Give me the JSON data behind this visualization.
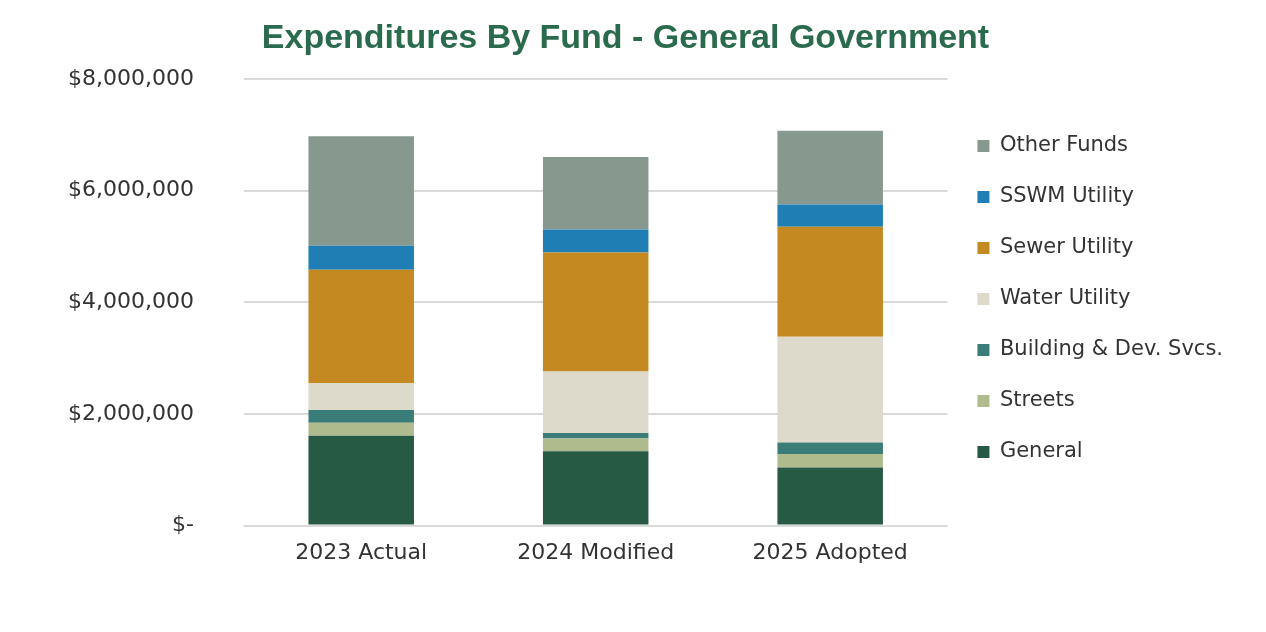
{
  "chart_data": {
    "type": "bar",
    "title": "Expenditures By Fund - General Government",
    "categories": [
      "2023 Actual",
      "2024 Modified",
      "2025 Adopted"
    ],
    "stacked": true,
    "series": [
      {
        "name": "General",
        "color": "#275a45",
        "values": [
          1610000,
          1330000,
          1040000
        ]
      },
      {
        "name": "Streets",
        "color": "#b0bb8d",
        "values": [
          230000,
          230000,
          240000
        ]
      },
      {
        "name": "Building & Dev. Svcs.",
        "color": "#3a7d78",
        "values": [
          230000,
          100000,
          210000
        ]
      },
      {
        "name": "Water Utility",
        "color": "#ddd9cb",
        "values": [
          480000,
          1100000,
          1890000
        ]
      },
      {
        "name": "Sewer Utility",
        "color": "#c48a21",
        "values": [
          2030000,
          2130000,
          1970000
        ]
      },
      {
        "name": "SSWM Utility",
        "color": "#1f7fb4",
        "values": [
          430000,
          410000,
          400000
        ]
      },
      {
        "name": "Other Funds",
        "color": "#87998f",
        "values": [
          1960000,
          1300000,
          1320000
        ]
      }
    ],
    "ylim": [
      0,
      8000000
    ],
    "yticks": [
      {
        "value": 0,
        "label": "$-"
      },
      {
        "value": 2000000,
        "label": "$2,000,000"
      },
      {
        "value": 4000000,
        "label": "$4,000,000"
      },
      {
        "value": 6000000,
        "label": "$6,000,000"
      },
      {
        "value": 8000000,
        "label": "$8,000,000"
      }
    ],
    "grid": "y",
    "legend": "right"
  }
}
